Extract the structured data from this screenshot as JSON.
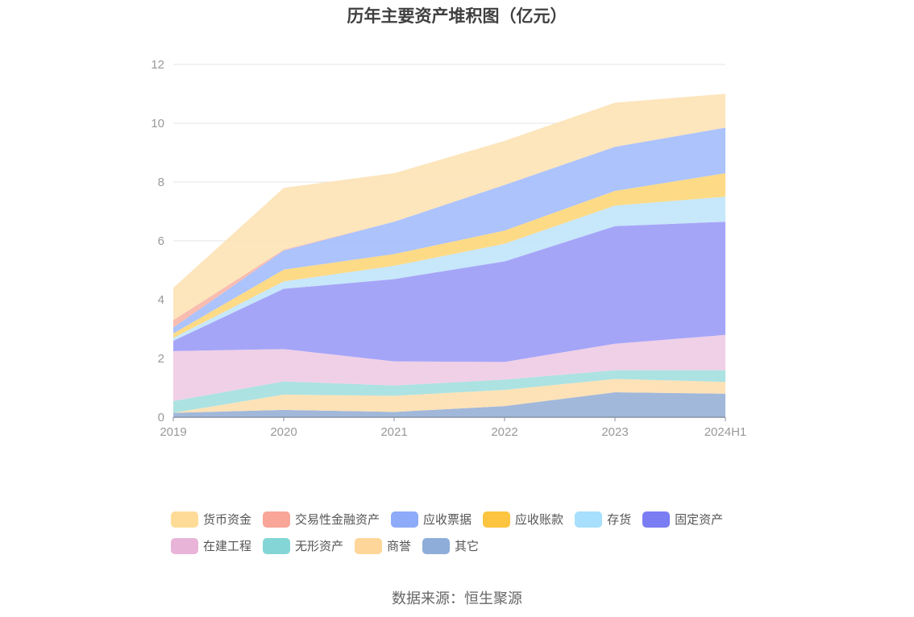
{
  "chart_data": {
    "type": "area",
    "stacked": true,
    "title": "历年主要资产堆积图（亿元）",
    "x": [
      "2019",
      "2020",
      "2021",
      "2022",
      "2023",
      "2024H1"
    ],
    "ylim": [
      0,
      12
    ],
    "yticks": [
      0,
      2,
      4,
      6,
      8,
      10,
      12
    ],
    "grid": true,
    "legend_position": "bottom",
    "series": [
      {
        "name": "其它",
        "color": "#9db4d8",
        "values": [
          0.15,
          0.25,
          0.18,
          0.38,
          0.85,
          0.8
        ]
      },
      {
        "name": "商誉",
        "color": "#fde0b3",
        "values": [
          0.0,
          0.52,
          0.55,
          0.55,
          0.45,
          0.4
        ]
      },
      {
        "name": "无形资产",
        "color": "#a8e0e0",
        "values": [
          0.4,
          0.45,
          0.35,
          0.35,
          0.3,
          0.4
        ]
      },
      {
        "name": "在建工程",
        "color": "#efcde6",
        "values": [
          1.7,
          1.1,
          0.82,
          0.6,
          0.9,
          1.2
        ]
      },
      {
        "name": "固定资产",
        "color": "#a0a0f8",
        "values": [
          0.35,
          2.05,
          2.8,
          3.42,
          4.0,
          3.85
        ]
      },
      {
        "name": "存货",
        "color": "#c4e6fa",
        "values": [
          0.1,
          0.25,
          0.45,
          0.6,
          0.7,
          0.85
        ]
      },
      {
        "name": "应收账款",
        "color": "#fdd880",
        "values": [
          0.15,
          0.4,
          0.4,
          0.45,
          0.5,
          0.8
        ]
      },
      {
        "name": "应收票据",
        "color": "#a8c0fc",
        "values": [
          0.2,
          0.65,
          1.1,
          1.55,
          1.5,
          1.55
        ]
      },
      {
        "name": "交易性金融资产",
        "color": "#f8b8ac",
        "values": [
          0.25,
          0.03,
          0.0,
          0.0,
          0.0,
          0.0
        ]
      },
      {
        "name": "货币资金",
        "color": "#fde4b8",
        "values": [
          1.1,
          2.1,
          1.65,
          1.5,
          1.5,
          1.15
        ]
      }
    ],
    "legend": [
      {
        "name": "货币资金",
        "color": "#fedc98"
      },
      {
        "name": "交易性金融资产",
        "color": "#f9a598"
      },
      {
        "name": "应收票据",
        "color": "#8eabf9"
      },
      {
        "name": "应收账款",
        "color": "#fcc43f"
      },
      {
        "name": "存货",
        "color": "#a7dffc"
      },
      {
        "name": "固定资产",
        "color": "#7b7df3"
      },
      {
        "name": "在建工程",
        "color": "#e8b5d8"
      },
      {
        "name": "无形资产",
        "color": "#84d6d6"
      },
      {
        "name": "商誉",
        "color": "#fed69a"
      },
      {
        "name": "其它",
        "color": "#8eaed9"
      }
    ]
  },
  "source_text": "数据来源：恒生聚源"
}
